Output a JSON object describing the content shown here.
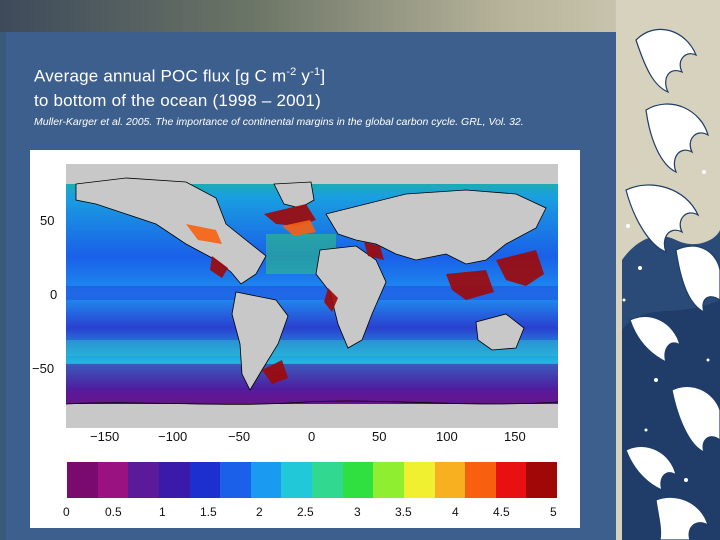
{
  "slide": {
    "title_line1_pre": "Average annual POC flux [g C m",
    "title_sup1": "-2",
    "title_mid": " y",
    "title_sup2": "-1",
    "title_line1_post": "]",
    "title_line2": "to bottom of the ocean (1998 – 2001)",
    "citation": "Muller-Karger et al. 2005. The importance of continental margins in the global carbon cycle. GRL, Vol. 32."
  },
  "map": {
    "x_ticks": [
      "−150",
      "−100",
      "−50",
      "0",
      "50",
      "100",
      "150"
    ],
    "y_ticks": [
      "50",
      "0",
      "−50"
    ],
    "land_color": "#c8c8c8",
    "ocean_background": "#0a7fbf"
  },
  "colorbar": {
    "ticks": [
      "0",
      "0.5",
      "1",
      "1.5",
      "2",
      "2.5",
      "3",
      "3.5",
      "4",
      "4.5",
      "5"
    ],
    "colors": [
      "#7a0a6e",
      "#9a1182",
      "#5a1a9a",
      "#3a1aa8",
      "#1e2fd0",
      "#1a60e8",
      "#1a9af0",
      "#20c8d8",
      "#30d890",
      "#30e040",
      "#90ee30",
      "#f0f030",
      "#f8b020",
      "#f86010",
      "#e81010",
      "#a00808"
    ]
  }
}
